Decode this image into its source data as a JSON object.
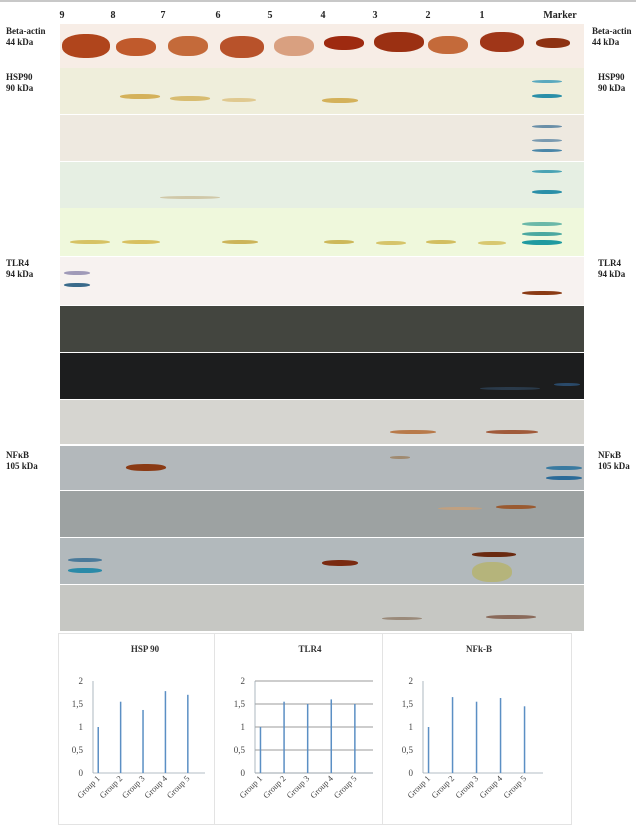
{
  "figure": {
    "lane_numbers": [
      "9",
      "8",
      "7",
      "6",
      "5",
      "4",
      "3",
      "2",
      "1"
    ],
    "marker_label": "Marker",
    "labels": {
      "beta_actin": {
        "name": "Beta-actin",
        "size": "44 kDa"
      },
      "hsp90": {
        "name": "HSP90",
        "size": "90 kDa"
      },
      "tlr4": {
        "name": "TLR4",
        "size": "94 kDa"
      },
      "nfkb": {
        "name": "NFκB",
        "size": "105 kDa"
      }
    },
    "colors": {
      "actin_band": "#b0451c",
      "hsp_band": "#d4b15a",
      "marker_blue": "#2a8fa8",
      "nfkb_band": "#8a3a14"
    }
  },
  "chart_data": [
    {
      "type": "bar",
      "title": "HSP 90",
      "categories": [
        "Group 1",
        "Group 2",
        "Group 3",
        "Group 4",
        "Group 5"
      ],
      "values": [
        1.0,
        1.55,
        1.37,
        1.78,
        1.7
      ],
      "ylim": [
        0,
        2
      ],
      "yticks": [
        "0",
        "0,5",
        "1",
        "1,5",
        "2"
      ],
      "grid": false
    },
    {
      "type": "bar",
      "title": "TLR4",
      "categories": [
        "Group 1",
        "Group 2",
        "Group 3",
        "Group 4",
        "Group 5"
      ],
      "values": [
        1.0,
        1.55,
        1.5,
        1.6,
        1.5
      ],
      "ylim": [
        0,
        2
      ],
      "yticks": [
        "0",
        "0,5",
        "1",
        "1,5",
        "2"
      ],
      "grid": true
    },
    {
      "type": "bar",
      "title": "NFk-B",
      "categories": [
        "Group 1",
        "Group 2",
        "Group 3",
        "Group 4",
        "Group 5"
      ],
      "values": [
        1.0,
        1.65,
        1.55,
        1.63,
        1.45
      ],
      "ylim": [
        0,
        2
      ],
      "yticks": [
        "0",
        "0,5",
        "1",
        "1,5",
        "2"
      ],
      "grid": false
    }
  ]
}
